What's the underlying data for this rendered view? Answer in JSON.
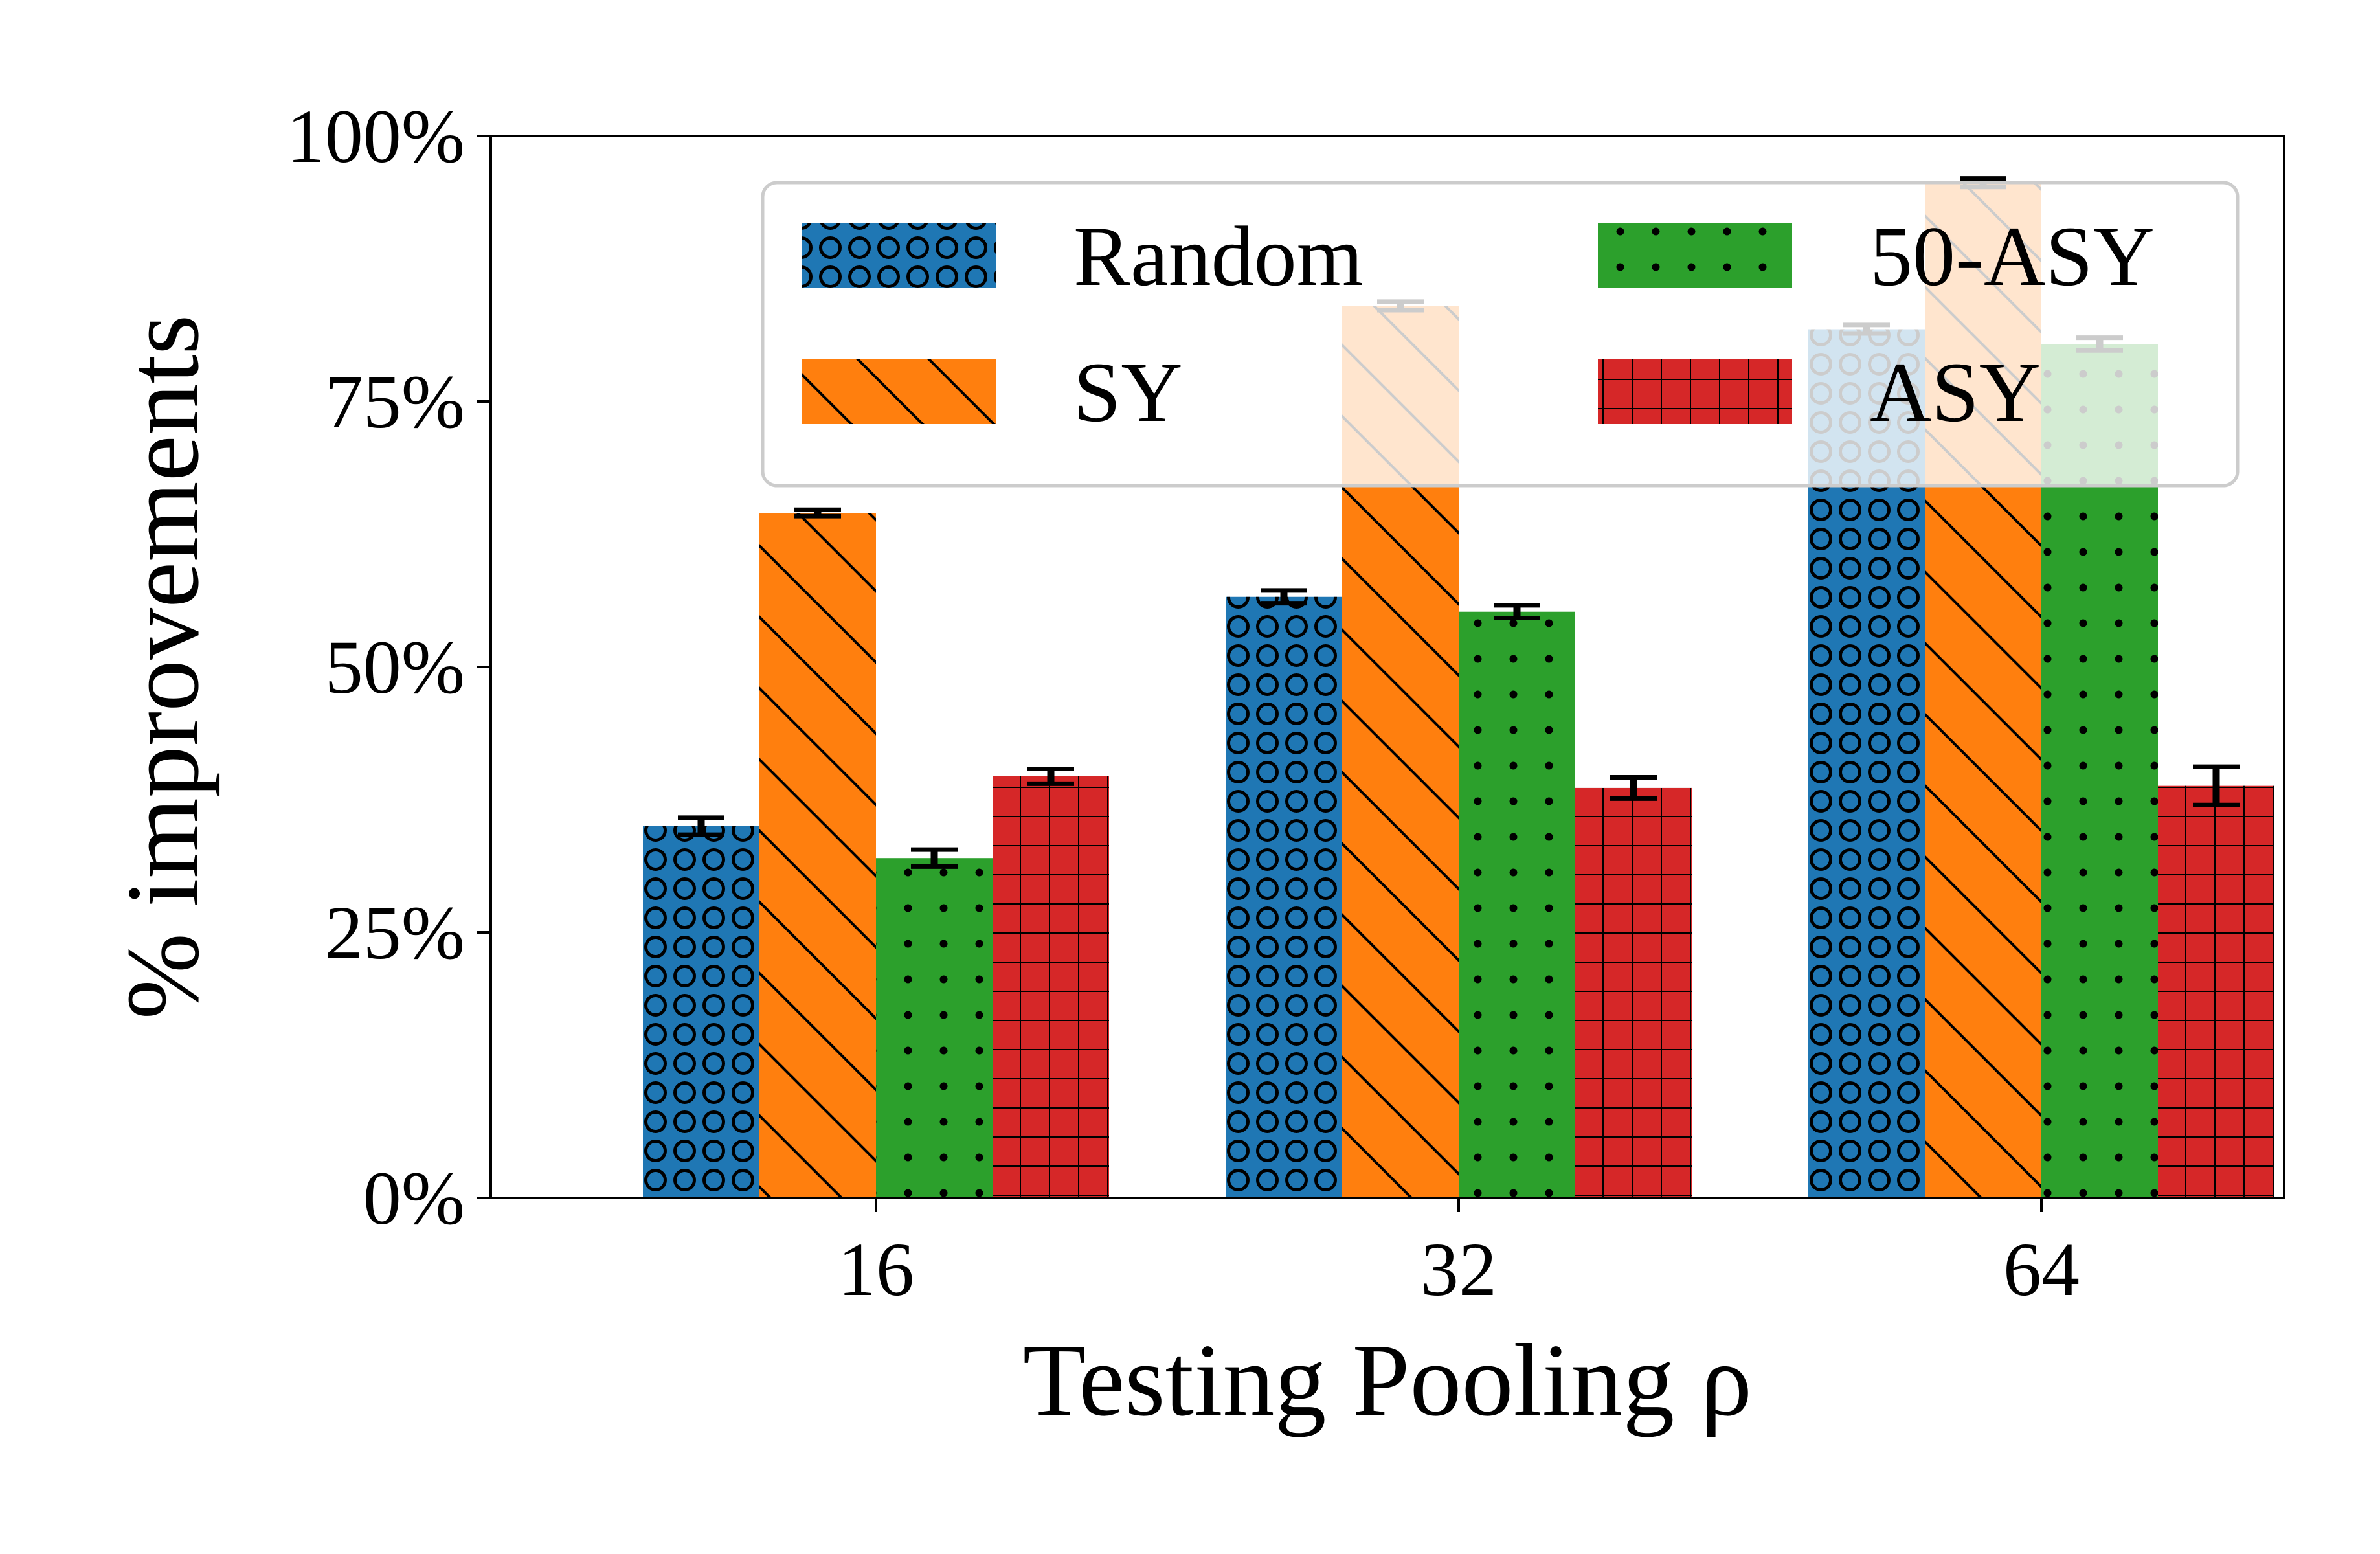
{
  "chart_data": {
    "type": "bar",
    "xlabel": "Testing Pooling ρ",
    "ylabel": "% improvements",
    "categories": [
      "16",
      "32",
      "64"
    ],
    "ylim": [
      0,
      100
    ],
    "yticks": [
      0,
      25,
      50,
      75,
      100
    ],
    "ytick_labels": [
      "0%",
      "25%",
      "50%",
      "75%",
      "100%"
    ],
    "series": [
      {
        "name": "Random",
        "color": "#1f77b4",
        "pattern": "circles",
        "values": [
          35,
          56.6,
          81.8
        ],
        "errors": [
          0.8,
          0.6,
          0.4
        ]
      },
      {
        "name": "SY",
        "color": "#ff7f0e",
        "pattern": "diagonal-lines",
        "values": [
          64.5,
          84,
          95.6
        ],
        "errors": [
          0.3,
          0.4,
          0.4
        ]
      },
      {
        "name": "50-ASY",
        "color": "#2ca02c",
        "pattern": "dots",
        "values": [
          32,
          55.2,
          80.4
        ],
        "errors": [
          0.8,
          0.6,
          0.6
        ]
      },
      {
        "name": "ASY",
        "color": "#d62728",
        "pattern": "grid",
        "values": [
          39.7,
          38.6,
          38.8
        ],
        "errors": [
          0.7,
          1.0,
          1.8
        ]
      }
    ],
    "legend": {
      "position": "top-right",
      "columns": 2
    },
    "grid": false
  }
}
